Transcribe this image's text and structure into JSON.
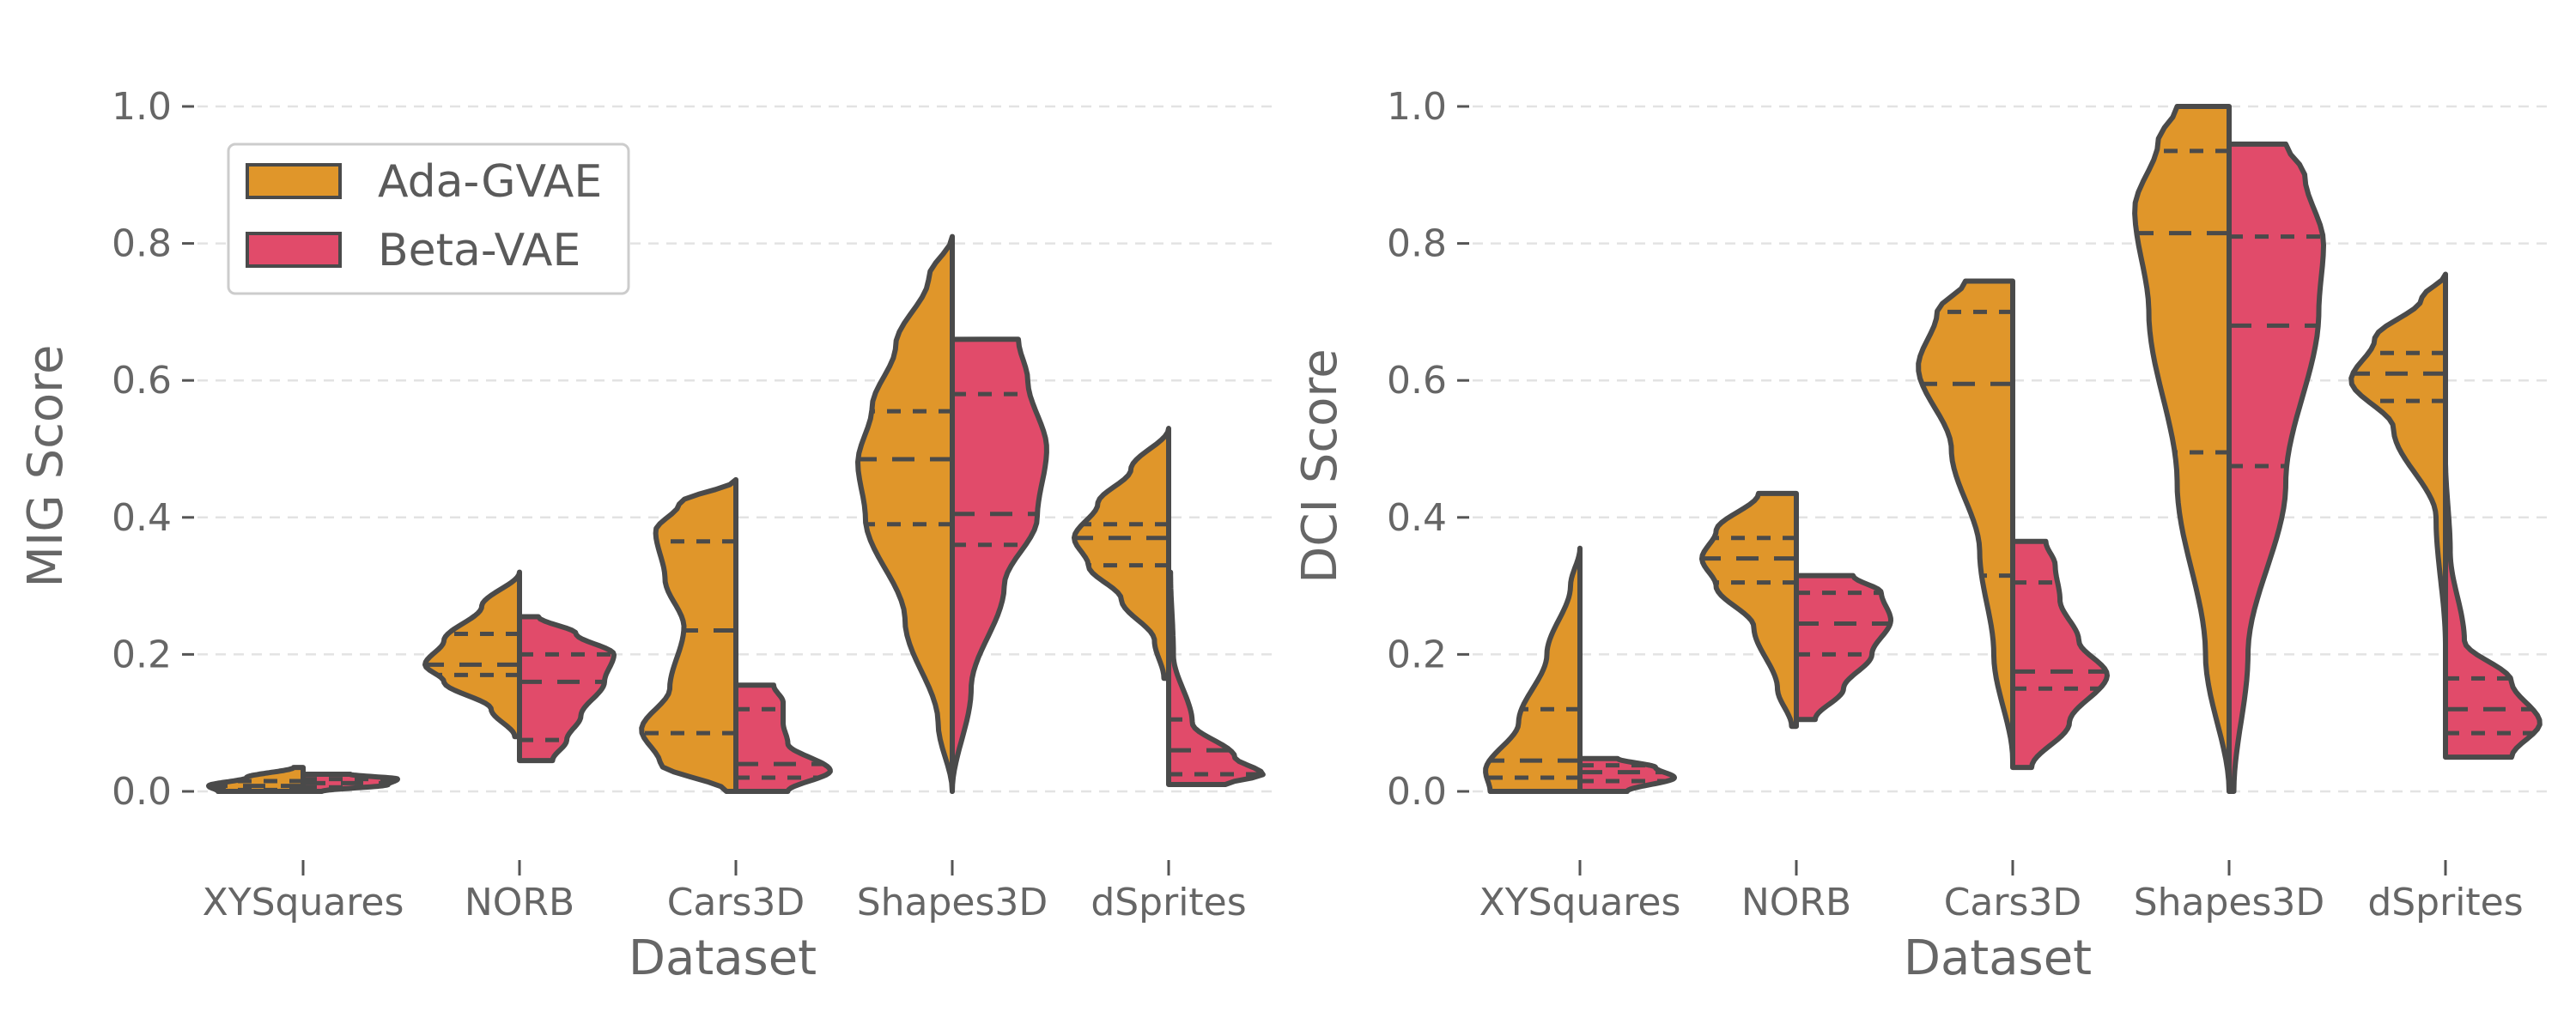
{
  "chart_data": [
    {
      "type": "violin",
      "xlabel": "Dataset",
      "ylabel": "MIG Score",
      "ylim": [
        -0.1,
        1.05
      ],
      "yticks": [
        "0.0",
        "0.2",
        "0.4",
        "0.6",
        "0.8",
        "1.0"
      ],
      "categories": [
        "XYSquares",
        "NORB",
        "Cars3D",
        "Shapes3D",
        "dSprites"
      ],
      "grid": "horizontal dashed",
      "legend": {
        "placement": "top-left",
        "entries": [
          "Ada-GVAE",
          "Beta-VAE"
        ]
      },
      "series": [
        {
          "name": "Ada-GVAE",
          "color": "#e0962a",
          "distributions": [
            {
              "min": 0.0,
              "max": 0.035,
              "quartiles": [
                0.002,
                0.008,
                0.015
              ],
              "profile": [
                [
                  0.0,
                  0.9
                ],
                [
                  0.008,
                  1.0
                ],
                [
                  0.02,
                  0.6
                ],
                [
                  0.035,
                  0.1
                ]
              ]
            },
            {
              "min": 0.08,
              "max": 0.32,
              "quartiles": [
                0.17,
                0.185,
                0.23
              ],
              "profile": [
                [
                  0.08,
                  0.05
                ],
                [
                  0.12,
                  0.3
                ],
                [
                  0.16,
                  0.8
                ],
                [
                  0.185,
                  1.0
                ],
                [
                  0.22,
                  0.8
                ],
                [
                  0.27,
                  0.4
                ],
                [
                  0.32,
                  0.0
                ]
              ]
            },
            {
              "min": 0.0,
              "max": 0.455,
              "quartiles": [
                0.085,
                0.235,
                0.365
              ],
              "profile": [
                [
                  0.0,
                  0.1
                ],
                [
                  0.04,
                  0.8
                ],
                [
                  0.09,
                  1.0
                ],
                [
                  0.15,
                  0.7
                ],
                [
                  0.24,
                  0.55
                ],
                [
                  0.31,
                  0.75
                ],
                [
                  0.38,
                  0.85
                ],
                [
                  0.42,
                  0.6
                ],
                [
                  0.455,
                  0.0
                ]
              ]
            },
            {
              "min": 0.0,
              "max": 0.81,
              "quartiles": [
                0.39,
                0.485,
                0.555
              ],
              "profile": [
                [
                  0.0,
                  0.0
                ],
                [
                  0.1,
                  0.15
                ],
                [
                  0.25,
                  0.5
                ],
                [
                  0.4,
                  0.92
                ],
                [
                  0.48,
                  1.0
                ],
                [
                  0.56,
                  0.85
                ],
                [
                  0.65,
                  0.6
                ],
                [
                  0.75,
                  0.25
                ],
                [
                  0.81,
                  0.0
                ]
              ]
            },
            {
              "min": 0.165,
              "max": 0.53,
              "quartiles": [
                0.33,
                0.37,
                0.39
              ],
              "profile": [
                [
                  0.165,
                  0.05
                ],
                [
                  0.22,
                  0.15
                ],
                [
                  0.28,
                  0.5
                ],
                [
                  0.33,
                  0.85
                ],
                [
                  0.37,
                  1.0
                ],
                [
                  0.42,
                  0.75
                ],
                [
                  0.47,
                  0.4
                ],
                [
                  0.53,
                  0.0
                ]
              ]
            }
          ]
        },
        {
          "name": "Beta-VAE",
          "color": "#e14b6a",
          "distributions": [
            {
              "min": 0.0,
              "max": 0.025,
              "quartiles": [
                0.006,
                0.012,
                0.018
              ],
              "profile": [
                [
                  0.0,
                  0.2
                ],
                [
                  0.01,
                  0.9
                ],
                [
                  0.018,
                  1.0
                ],
                [
                  0.025,
                  0.5
                ]
              ]
            },
            {
              "min": 0.045,
              "max": 0.255,
              "quartiles": [
                0.075,
                0.16,
                0.2
              ],
              "profile": [
                [
                  0.045,
                  0.35
                ],
                [
                  0.075,
                  0.5
                ],
                [
                  0.11,
                  0.65
                ],
                [
                  0.16,
                  0.9
                ],
                [
                  0.2,
                  1.0
                ],
                [
                  0.23,
                  0.6
                ],
                [
                  0.255,
                  0.2
                ]
              ]
            },
            {
              "min": 0.0,
              "max": 0.155,
              "quartiles": [
                0.02,
                0.04,
                0.12
              ],
              "profile": [
                [
                  0.0,
                  0.55
                ],
                [
                  0.03,
                  1.0
                ],
                [
                  0.07,
                  0.55
                ],
                [
                  0.1,
                  0.5
                ],
                [
                  0.13,
                  0.5
                ],
                [
                  0.155,
                  0.4
                ]
              ]
            },
            {
              "min": 0.0,
              "max": 0.66,
              "quartiles": [
                0.36,
                0.405,
                0.58
              ],
              "profile": [
                [
                  0.0,
                  0.0
                ],
                [
                  0.15,
                  0.2
                ],
                [
                  0.3,
                  0.55
                ],
                [
                  0.4,
                  0.9
                ],
                [
                  0.5,
                  1.0
                ],
                [
                  0.6,
                  0.8
                ],
                [
                  0.66,
                  0.7
                ]
              ]
            },
            {
              "min": 0.01,
              "max": 0.32,
              "quartiles": [
                0.025,
                0.06,
                0.105
              ],
              "profile": [
                [
                  0.01,
                  0.6
                ],
                [
                  0.025,
                  1.0
                ],
                [
                  0.05,
                  0.7
                ],
                [
                  0.1,
                  0.25
                ],
                [
                  0.2,
                  0.05
                ],
                [
                  0.32,
                  0.02
                ]
              ]
            }
          ]
        }
      ]
    },
    {
      "type": "violin",
      "xlabel": "Dataset",
      "ylabel": "DCI Score",
      "ylim": [
        -0.1,
        1.05
      ],
      "yticks": [
        "0.0",
        "0.2",
        "0.4",
        "0.6",
        "0.8",
        "1.0"
      ],
      "categories": [
        "XYSquares",
        "NORB",
        "Cars3D",
        "Shapes3D",
        "dSprites"
      ],
      "grid": "horizontal dashed",
      "series": [
        {
          "name": "Ada-GVAE",
          "color": "#e0962a",
          "distributions": [
            {
              "min": 0.0,
              "max": 0.355,
              "quartiles": [
                0.02,
                0.045,
                0.12
              ],
              "profile": [
                [
                  0.0,
                  0.95
                ],
                [
                  0.03,
                  1.0
                ],
                [
                  0.1,
                  0.65
                ],
                [
                  0.2,
                  0.35
                ],
                [
                  0.3,
                  0.1
                ],
                [
                  0.355,
                  0.0
                ]
              ]
            },
            {
              "min": 0.095,
              "max": 0.435,
              "quartiles": [
                0.305,
                0.34,
                0.37
              ],
              "profile": [
                [
                  0.095,
                  0.05
                ],
                [
                  0.15,
                  0.2
                ],
                [
                  0.24,
                  0.45
                ],
                [
                  0.3,
                  0.85
                ],
                [
                  0.34,
                  1.0
                ],
                [
                  0.38,
                  0.85
                ],
                [
                  0.435,
                  0.4
                ]
              ]
            },
            {
              "min": 0.045,
              "max": 0.745,
              "quartiles": [
                0.315,
                0.595,
                0.7
              ],
              "profile": [
                [
                  0.045,
                  0.0
                ],
                [
                  0.2,
                  0.2
                ],
                [
                  0.35,
                  0.35
                ],
                [
                  0.5,
                  0.65
                ],
                [
                  0.62,
                  1.0
                ],
                [
                  0.7,
                  0.8
                ],
                [
                  0.745,
                  0.5
                ]
              ]
            },
            {
              "min": 0.0,
              "max": 1.0,
              "quartiles": [
                0.495,
                0.815,
                0.935
              ],
              "profile": [
                [
                  0.0,
                  0.0
                ],
                [
                  0.2,
                  0.25
                ],
                [
                  0.45,
                  0.55
                ],
                [
                  0.7,
                  0.85
                ],
                [
                  0.85,
                  1.0
                ],
                [
                  0.95,
                  0.75
                ],
                [
                  1.0,
                  0.55
                ]
              ]
            },
            {
              "min": 0.215,
              "max": 0.755,
              "quartiles": [
                0.57,
                0.61,
                0.64
              ],
              "profile": [
                [
                  0.215,
                  0.0
                ],
                [
                  0.4,
                  0.1
                ],
                [
                  0.53,
                  0.55
                ],
                [
                  0.6,
                  1.0
                ],
                [
                  0.66,
                  0.75
                ],
                [
                  0.72,
                  0.25
                ],
                [
                  0.755,
                  0.0
                ]
              ]
            }
          ]
        },
        {
          "name": "Beta-VAE",
          "color": "#e14b6a",
          "distributions": [
            {
              "min": 0.0,
              "max": 0.048,
              "quartiles": [
                0.015,
                0.028,
                0.038
              ],
              "profile": [
                [
                  0.0,
                  0.5
                ],
                [
                  0.02,
                  1.0
                ],
                [
                  0.035,
                  0.8
                ],
                [
                  0.048,
                  0.4
                ]
              ]
            },
            {
              "min": 0.105,
              "max": 0.315,
              "quartiles": [
                0.2,
                0.245,
                0.29
              ],
              "profile": [
                [
                  0.105,
                  0.2
                ],
                [
                  0.15,
                  0.5
                ],
                [
                  0.2,
                  0.8
                ],
                [
                  0.25,
                  1.0
                ],
                [
                  0.29,
                  0.9
                ],
                [
                  0.315,
                  0.6
                ]
              ]
            },
            {
              "min": 0.035,
              "max": 0.365,
              "quartiles": [
                0.15,
                0.175,
                0.305
              ],
              "profile": [
                [
                  0.035,
                  0.2
                ],
                [
                  0.1,
                  0.6
                ],
                [
                  0.17,
                  1.0
                ],
                [
                  0.22,
                  0.7
                ],
                [
                  0.28,
                  0.5
                ],
                [
                  0.33,
                  0.45
                ],
                [
                  0.365,
                  0.35
                ]
              ]
            },
            {
              "min": 0.0,
              "max": 0.945,
              "quartiles": [
                0.475,
                0.68,
                0.81
              ],
              "profile": [
                [
                  0.0,
                  0.05
                ],
                [
                  0.2,
                  0.2
                ],
                [
                  0.45,
                  0.6
                ],
                [
                  0.7,
                  0.95
                ],
                [
                  0.8,
                  1.0
                ],
                [
                  0.9,
                  0.8
                ],
                [
                  0.945,
                  0.6
                ]
              ]
            },
            {
              "min": 0.05,
              "max": 0.485,
              "quartiles": [
                0.085,
                0.12,
                0.165
              ],
              "profile": [
                [
                  0.05,
                  0.7
                ],
                [
                  0.1,
                  1.0
                ],
                [
                  0.16,
                  0.7
                ],
                [
                  0.22,
                  0.2
                ],
                [
                  0.35,
                  0.05
                ],
                [
                  0.485,
                  0.0
                ]
              ]
            }
          ]
        }
      ]
    }
  ]
}
